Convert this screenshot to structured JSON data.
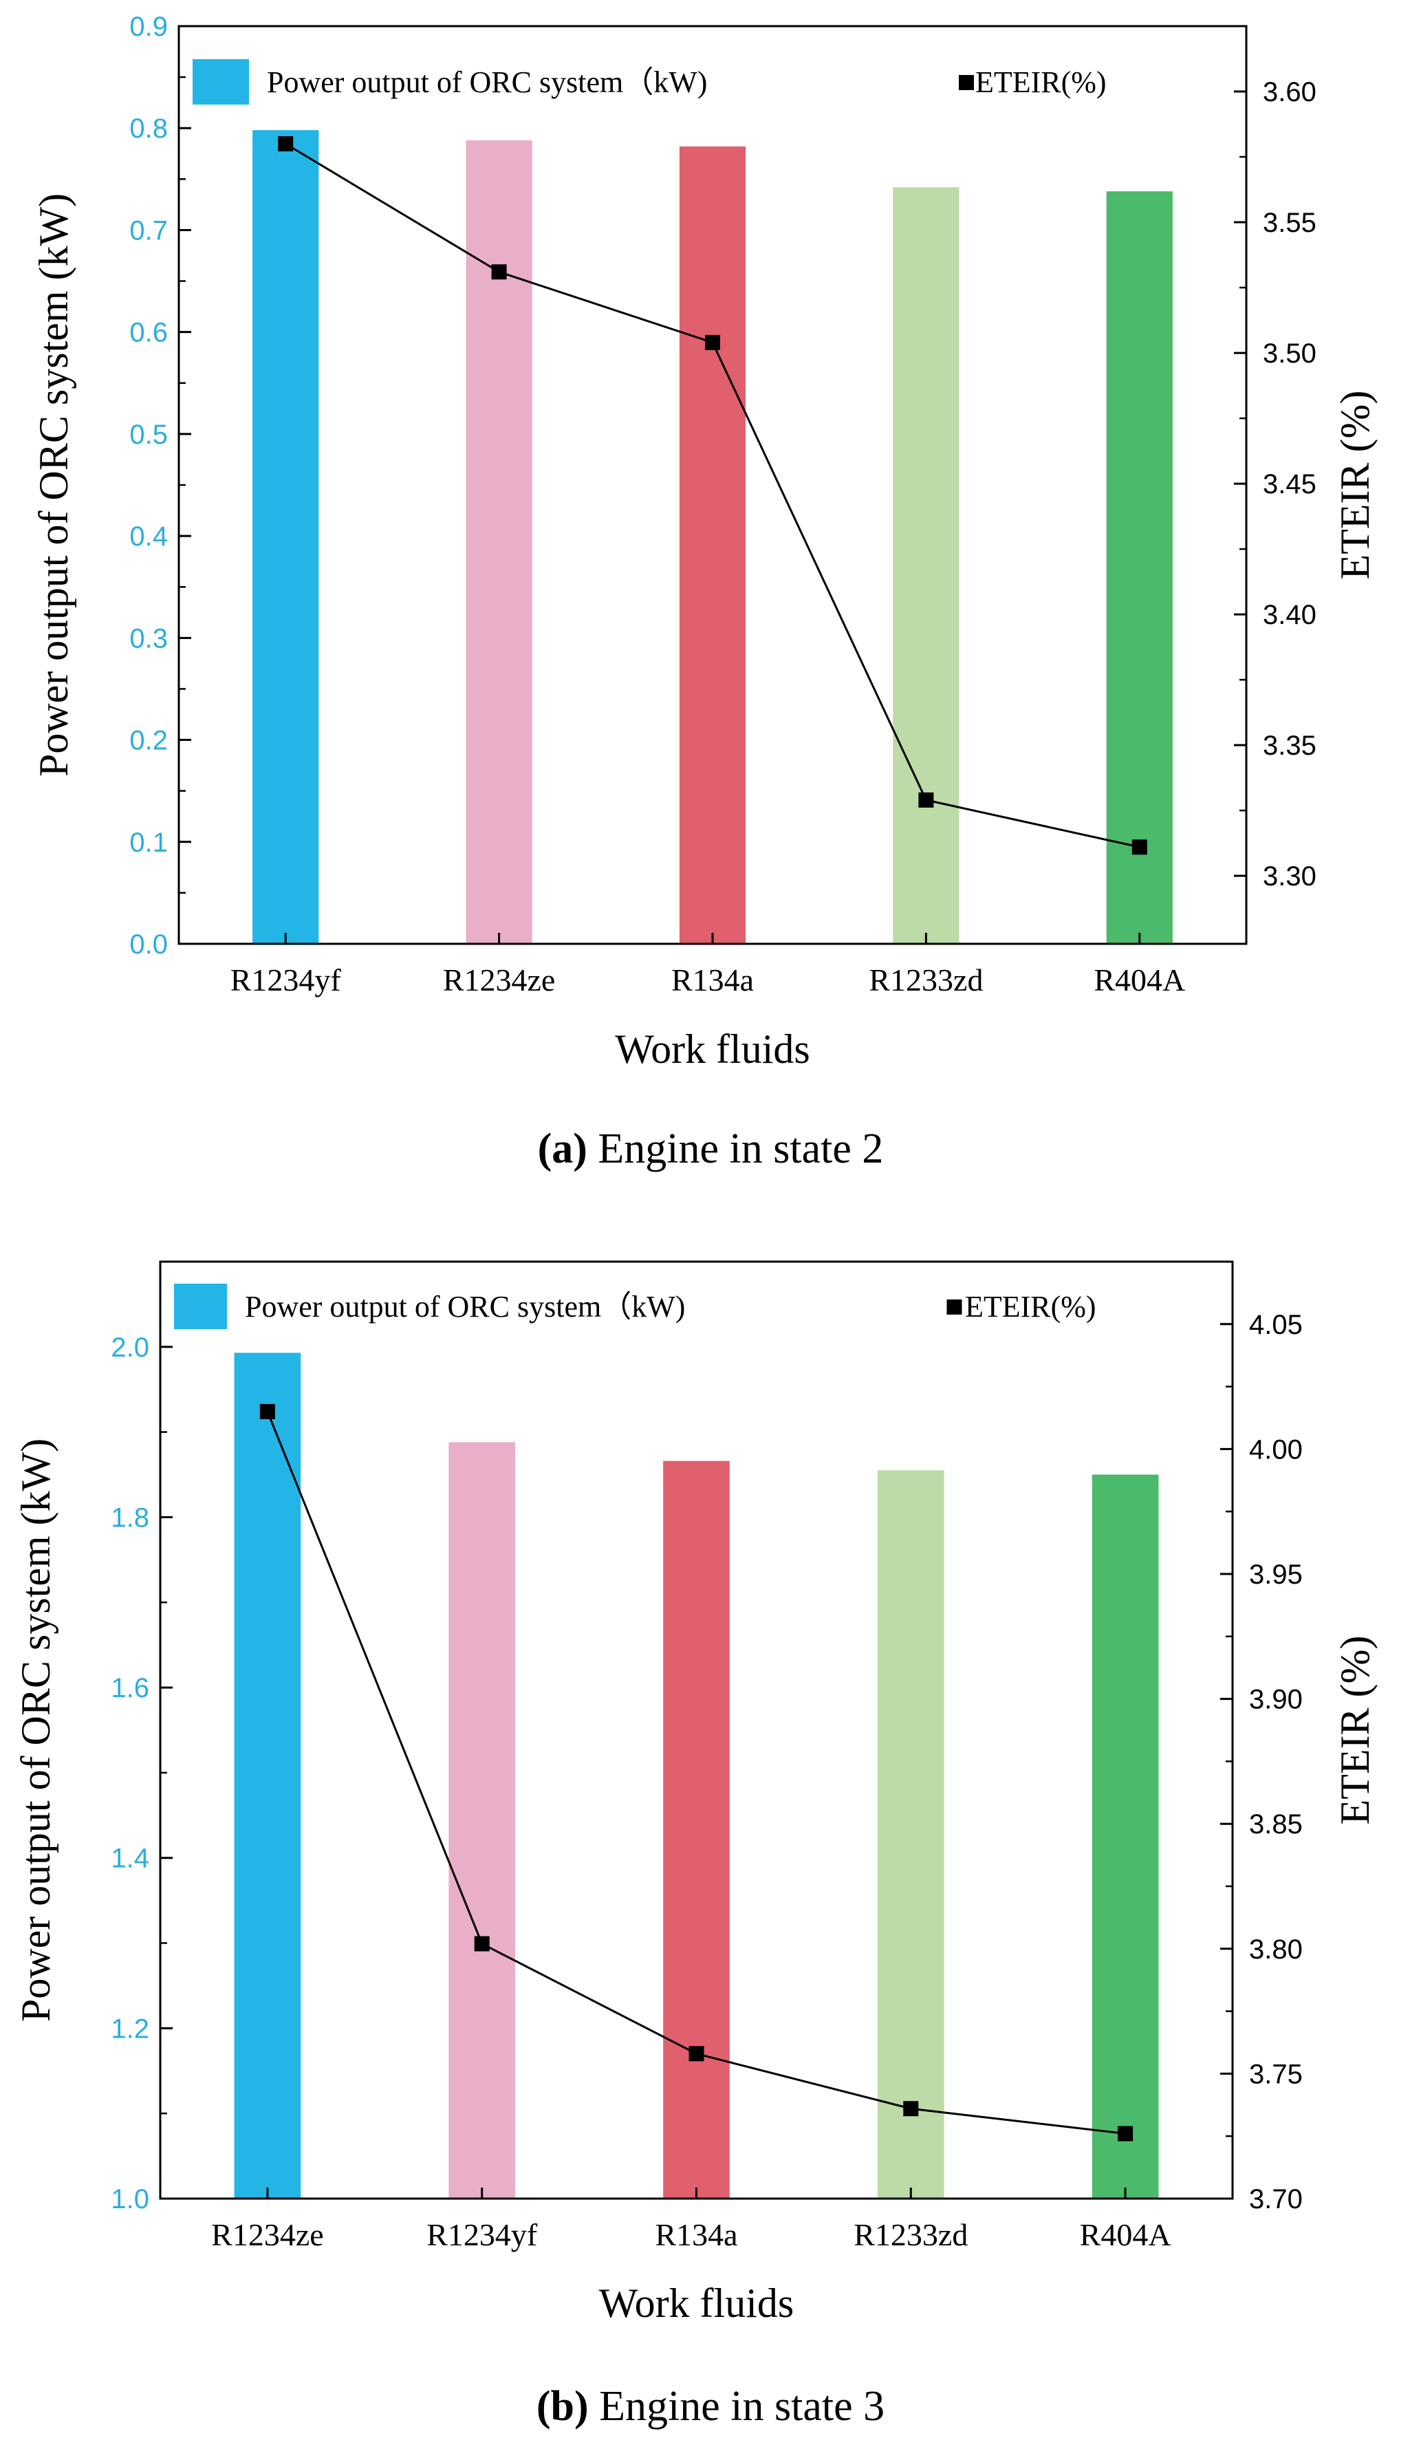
{
  "colors": {
    "left_axis": "#29AEDD",
    "axis": "#000000",
    "line": "#000000"
  },
  "panels": [
    {
      "caption_label": "(a)",
      "caption_text": "Engine in state 2",
      "chart_data": {
        "type": "bar",
        "categories": [
          "R1234yf",
          "R1234ze",
          "R134a",
          "R1233zd",
          "R404A"
        ],
        "bar_colors": [
          "#22B5E6",
          "#EAAFC8",
          "#E0606E",
          "#BCDBA7",
          "#4BBA6A"
        ],
        "series": [
          {
            "name": "Power output of ORC system（kW)",
            "type": "bar",
            "axis": "left",
            "values": [
              0.798,
              0.788,
              0.782,
              0.742,
              0.738
            ]
          },
          {
            "name": "ETEIR(%)",
            "type": "line",
            "axis": "right",
            "values": [
              3.58,
              3.531,
              3.504,
              3.329,
              3.311
            ]
          }
        ],
        "xlabel": "Work fluids",
        "ylabel_left": "Power output of ORC system (kW)",
        "ylabel_right": "ETEIR (%)",
        "ylim_left": [
          0,
          0.9
        ],
        "ylim_right": [
          3.274,
          3.625
        ],
        "yticks_left": [
          "0.0",
          "0.1",
          "0.2",
          "0.3",
          "0.4",
          "0.5",
          "0.6",
          "0.7",
          "0.8",
          "0.9"
        ],
        "yticks_right": [
          "3.30",
          "3.35",
          "3.40",
          "3.45",
          "3.50",
          "3.55",
          "3.60"
        ],
        "legend_position": "top",
        "grid": false
      }
    },
    {
      "caption_label": "(b)",
      "caption_text": "Engine in state 3",
      "chart_data": {
        "type": "bar",
        "categories": [
          "R1234ze",
          "R1234yf",
          "R134a",
          "R1233zd",
          "R404A"
        ],
        "bar_colors": [
          "#22B5E6",
          "#EAAFC8",
          "#E0606E",
          "#BCDBA7",
          "#4BBA6A"
        ],
        "series": [
          {
            "name": "Power output of ORC system（kW)",
            "type": "bar",
            "axis": "left",
            "values": [
              1.993,
              1.888,
              1.866,
              1.855,
              1.85
            ]
          },
          {
            "name": "ETEIR(%)",
            "type": "line",
            "axis": "right",
            "values": [
              4.015,
              3.802,
              3.758,
              3.736,
              3.726
            ]
          }
        ],
        "xlabel": "Work fluids",
        "ylabel_left": "Power output of ORC system (kW)",
        "ylabel_right": "ETEIR (%)",
        "ylim_left": [
          1.0,
          2.1
        ],
        "ylim_right": [
          3.7,
          4.075
        ],
        "yticks_left": [
          "1.0",
          "1.2",
          "1.4",
          "1.6",
          "1.8",
          "2.0"
        ],
        "yticks_right": [
          "3.70",
          "3.75",
          "3.80",
          "3.85",
          "3.90",
          "3.95",
          "4.00",
          "4.05"
        ],
        "legend_position": "top",
        "grid": false
      }
    }
  ]
}
